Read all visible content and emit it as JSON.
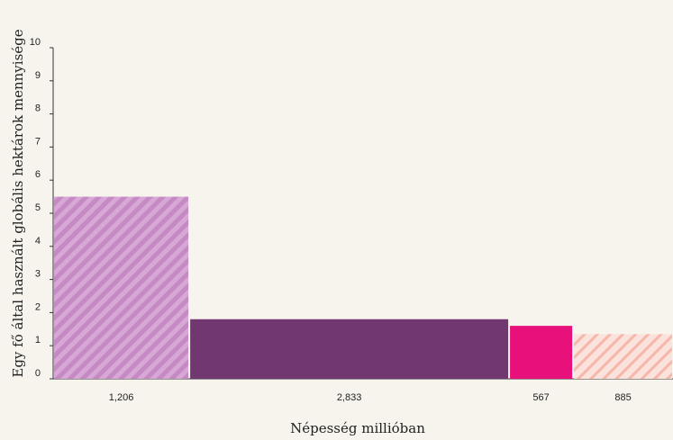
{
  "chart_data": {
    "type": "bar",
    "variant": "variable-width",
    "xlabel": "Népesség millióban",
    "ylabel": "Egy fő által használt globális hektárok mennyisége",
    "ylim": [
      0,
      10
    ],
    "yticks": [
      "0",
      "1",
      "2",
      "3",
      "4",
      "5",
      "6",
      "7",
      "8",
      "9",
      "10"
    ],
    "categories": [
      "1,206",
      "2,833",
      "567",
      "885"
    ],
    "widths": [
      1206,
      2833,
      567,
      885
    ],
    "values": [
      5.5,
      1.8,
      1.6,
      1.35
    ],
    "colors": [
      "#c98cc8",
      "#713770",
      "#e8107a",
      "#f7b8aa"
    ],
    "patterns": [
      "hatch",
      "solid",
      "solid",
      "hatch"
    ],
    "grid": false
  }
}
